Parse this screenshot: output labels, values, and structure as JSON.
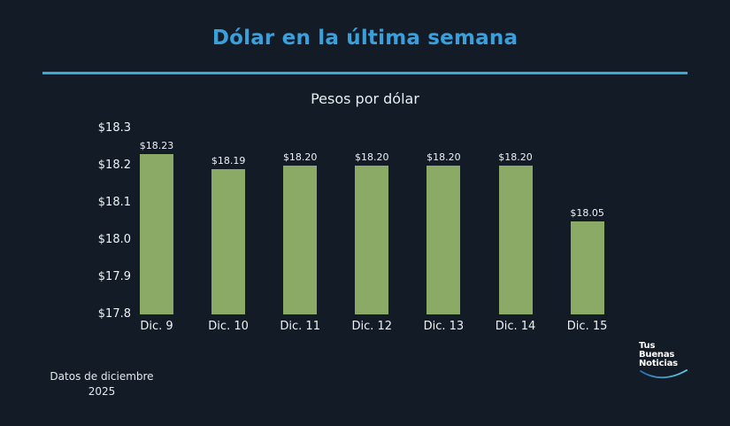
{
  "header": {
    "title": "Dólar en la última semana",
    "subtitle": "Pesos por dólar"
  },
  "footer": {
    "note_line1": "Datos de diciembre",
    "note_line2": "2025"
  },
  "logo": {
    "line1": "Tus",
    "line2": "Buenas",
    "line3": "Noticias",
    "icon": "smile-arc-icon"
  },
  "colors": {
    "background": "#131b27",
    "title": "#3aa0dc",
    "rule": "#3aa9d6",
    "bar": "#8aaa66",
    "text": "#eef2f5"
  },
  "chart_data": {
    "type": "bar",
    "title": "Dólar en la última semana",
    "subtitle": "Pesos por dólar",
    "xlabel": "",
    "ylabel": "Pesos por dólar",
    "categories": [
      "Dic. 9",
      "Dic. 10",
      "Dic. 11",
      "Dic. 12",
      "Dic. 13",
      "Dic. 14",
      "Dic. 15"
    ],
    "values": [
      18.23,
      18.19,
      18.2,
      18.2,
      18.2,
      18.2,
      18.05
    ],
    "value_labels": [
      "$18.23",
      "$18.19",
      "$18.20",
      "$18.20",
      "$18.20",
      "$18.20",
      "$18.05"
    ],
    "yticks": [
      "$18.3",
      "$18.2",
      "$18.1",
      "$18.0",
      "$17.9",
      "$17.8"
    ],
    "ylim": [
      17.8,
      18.3
    ],
    "grid": false,
    "legend": null
  }
}
